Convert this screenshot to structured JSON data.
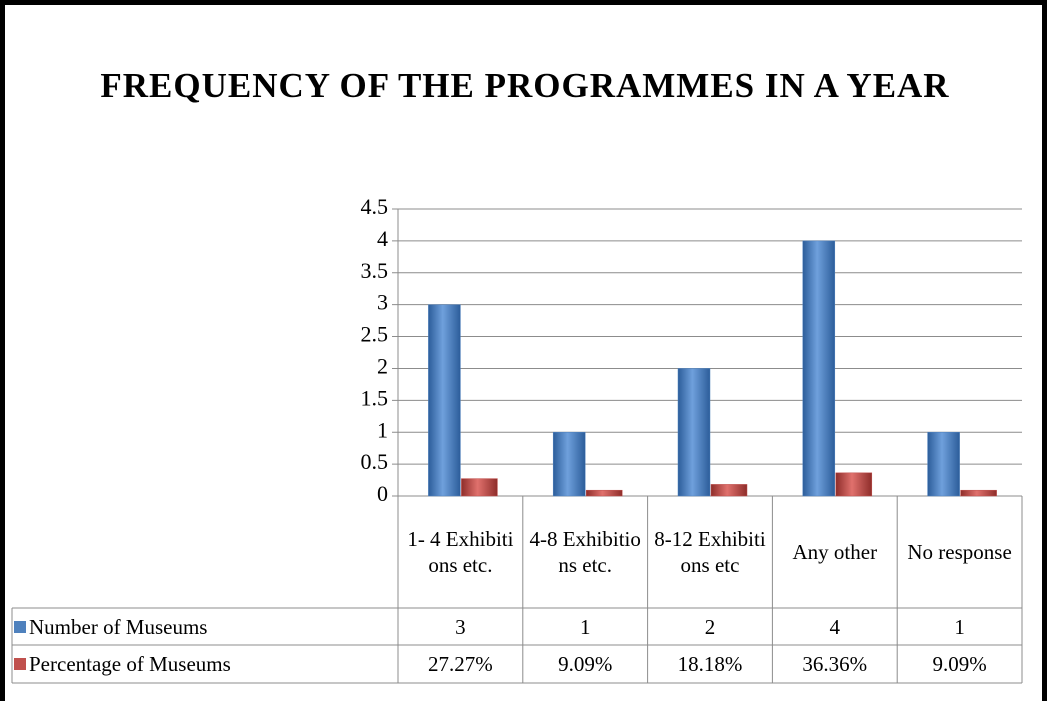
{
  "chart_data": {
    "type": "bar",
    "title": "FREQUENCY OF THE PROGRAMMES IN A YEAR",
    "categories": [
      "1- 4 Exhibitions etc.",
      "4-8 Exhibitions etc.",
      "8-12 Exhibitions etc",
      "Any other",
      "No response"
    ],
    "series": [
      {
        "name": "Number of Museums",
        "color": "#4f81bd",
        "values": [
          3,
          1,
          2,
          4,
          1
        ]
      },
      {
        "name": "Percentage of Museums",
        "color": "#c0504d",
        "values": [
          0.2727,
          0.0909,
          0.1818,
          0.3636,
          0.0909
        ],
        "value_labels": [
          "27.27%",
          "9.09%",
          "18.18%",
          "36.36%",
          "9.09%"
        ]
      }
    ],
    "ylim": [
      0,
      4.5
    ],
    "yticks": [
      0,
      0.5,
      1,
      1.5,
      2,
      2.5,
      3,
      3.5,
      4,
      4.5
    ],
    "grid": true
  }
}
